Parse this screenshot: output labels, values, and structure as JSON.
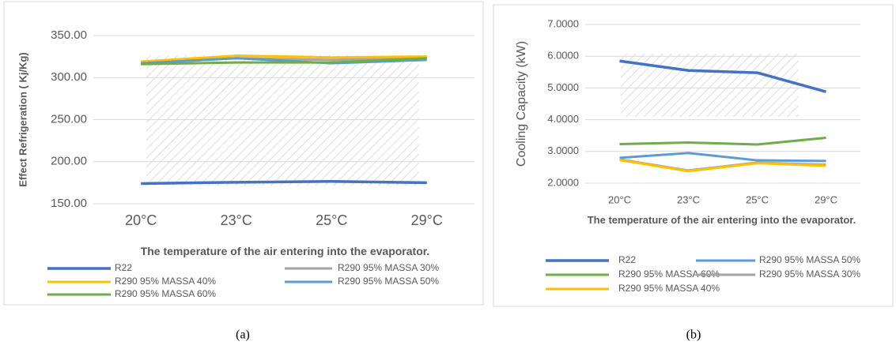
{
  "chart_data": [
    {
      "type": "line",
      "title": null,
      "y_label": "Effect Refrigeration ( Kj/Kg)",
      "x_label": "The temperature of the air entering into the evaporator.",
      "panel_label": "(a)",
      "categories": [
        "20°C",
        "23°C",
        "25°C",
        "29°C"
      ],
      "ylim": [
        150,
        350
      ],
      "yticks": [
        {
          "value": 150,
          "label": "150.00"
        },
        {
          "value": 200,
          "label": "200.00"
        },
        {
          "value": 250,
          "label": "250.00"
        },
        {
          "value": 300,
          "label": "300.00"
        },
        {
          "value": 350,
          "label": "350.00"
        }
      ],
      "grid": true,
      "series": [
        {
          "name": "R22",
          "color": "#4472c4",
          "values": [
            174,
            175.5,
            176.5,
            175
          ]
        },
        {
          "name": "R290 95%  MASSA 30%",
          "color": "#a5a5a5",
          "values": [
            317,
            323,
            321,
            324
          ]
        },
        {
          "name": "R290 95%  MASSA 40%",
          "color": "#ffc000",
          "values": [
            319,
            326,
            324,
            325
          ]
        },
        {
          "name": "R290 95%  MASSA 50%",
          "color": "#5b9bd5",
          "values": [
            317,
            323,
            317,
            321
          ]
        },
        {
          "name": "R290 95%  MASSA 60%",
          "color": "#70ad47",
          "values": [
            316,
            318,
            318,
            323
          ]
        }
      ]
    },
    {
      "type": "line",
      "title": null,
      "y_label": "Cooling Capacity (kW)",
      "x_label": "The temperature of the air entering into the evaporator.",
      "panel_label": "(b)",
      "categories": [
        "20°C",
        "23°C",
        "25°C",
        "29°C"
      ],
      "ylim": [
        2,
        7
      ],
      "yticks": [
        {
          "value": 2,
          "label": "2.0000"
        },
        {
          "value": 3,
          "label": "3.0000"
        },
        {
          "value": 4,
          "label": "4.0000"
        },
        {
          "value": 5,
          "label": "5.0000"
        },
        {
          "value": 6,
          "label": "6.0000"
        },
        {
          "value": 7,
          "label": "7.0000"
        }
      ],
      "grid": true,
      "series": [
        {
          "name": "R22",
          "color": "#4472c4",
          "values": [
            5.85,
            5.55,
            5.48,
            4.88
          ]
        },
        {
          "name": "R290 95%  MASSA 50%",
          "color": "#5b9bd5",
          "values": [
            2.8,
            2.95,
            2.72,
            2.7
          ]
        },
        {
          "name": "R290 95%  MASSA 60%",
          "color": "#70ad47",
          "values": [
            3.23,
            3.28,
            3.22,
            3.43
          ]
        },
        {
          "name": "R290 95%  MASSA 30%",
          "color": "#a5a5a5",
          "values": [
            2.75,
            2.4,
            2.65,
            2.58
          ]
        },
        {
          "name": "R290 95%  MASSA 40%",
          "color": "#ffc000",
          "values": [
            2.73,
            2.38,
            2.63,
            2.55
          ]
        }
      ]
    }
  ]
}
